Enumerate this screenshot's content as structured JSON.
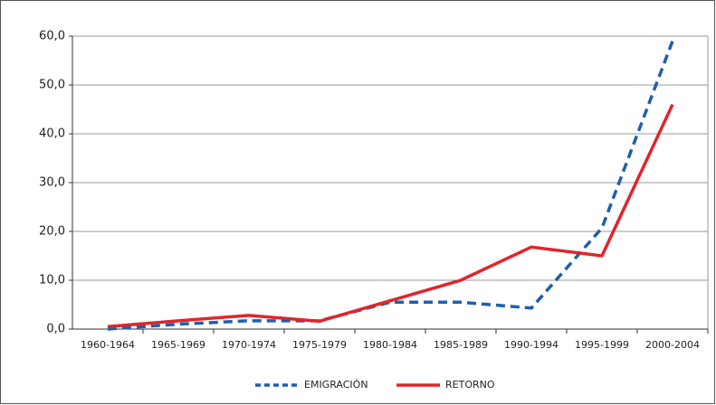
{
  "chart_data": {
    "type": "line",
    "categories": [
      "1960-1964",
      "1965-1969",
      "1970-1974",
      "1975-1979",
      "1980-1984",
      "1985-1989",
      "1990-1994",
      "1995-1999",
      "2000-2004"
    ],
    "series": [
      {
        "name": "EMIGRACIÓN",
        "color": "#1f5fad",
        "dashed": true,
        "values": [
          0.0,
          1.0,
          1.7,
          1.7,
          5.5,
          5.5,
          4.3,
          20.7,
          59.0
        ]
      },
      {
        "name": "RETORNO",
        "color": "#e0252b",
        "dashed": false,
        "values": [
          0.5,
          1.7,
          2.8,
          1.6,
          5.8,
          10.0,
          16.8,
          15.0,
          46.0
        ]
      }
    ],
    "ylim": [
      0,
      60
    ],
    "yticks": [
      {
        "value": 0,
        "label": "0,0"
      },
      {
        "value": 10,
        "label": "10,0"
      },
      {
        "value": 20,
        "label": "20,0"
      },
      {
        "value": 30,
        "label": "30,0"
      },
      {
        "value": 40,
        "label": "40,0"
      },
      {
        "value": 50,
        "label": "50,0"
      },
      {
        "value": 60,
        "label": "60,0"
      }
    ],
    "grid": true,
    "legend": "bottom"
  }
}
